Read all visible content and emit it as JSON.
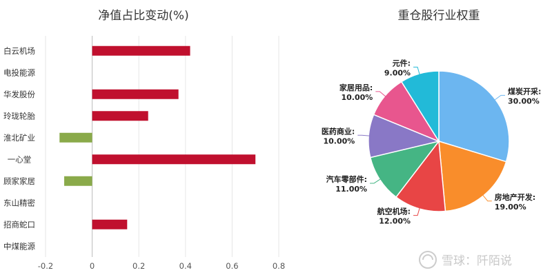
{
  "chart_data": [
    {
      "type": "bar",
      "orientation": "horizontal",
      "title": "净值占比变动(%)",
      "categories": [
        "白云机场",
        "电投能源",
        "华发股份",
        "玲珑轮胎",
        "淮北矿业",
        "一心堂",
        "顾家家居",
        "东山精密",
        "招商蛇口",
        "中煤能源"
      ],
      "values": [
        0.42,
        0.0,
        0.37,
        0.24,
        -0.14,
        0.7,
        -0.12,
        0.0,
        0.15,
        0.0
      ],
      "xlim": [
        -0.2,
        0.8
      ],
      "xticks": [
        "-0.2",
        "0",
        "0.2",
        "0.4",
        "0.6",
        "0.8"
      ],
      "grid": true,
      "colors": {
        "positive": "#c0102e",
        "negative": "#8aaa4a",
        "grid": "#e6e6e6",
        "axis": "#bbbbbb"
      }
    },
    {
      "type": "pie",
      "title": "重仓股行业权重",
      "slices": [
        {
          "label": "煤炭开采:",
          "percent_text": "30.00%",
          "value": 30,
          "color": "#6cb6f0"
        },
        {
          "label": "房地产开发:",
          "percent_text": "19.00%",
          "value": 19,
          "color": "#f98d2b"
        },
        {
          "label": "航空机场:",
          "percent_text": "12.00%",
          "value": 12,
          "color": "#e84545"
        },
        {
          "label": "汽车零部件:",
          "percent_text": "11.00%",
          "value": 11,
          "color": "#45b584"
        },
        {
          "label": "医药商业:",
          "percent_text": "10.00%",
          "value": 10,
          "color": "#8978c6"
        },
        {
          "label": "家居用品:",
          "percent_text": "10.00%",
          "value": 10,
          "color": "#e8568e"
        },
        {
          "label": "元件:",
          "percent_text": "9.00%",
          "value": 9,
          "color": "#22bad8"
        }
      ]
    }
  ],
  "watermark": {
    "text": "雪球：阡陌说"
  }
}
